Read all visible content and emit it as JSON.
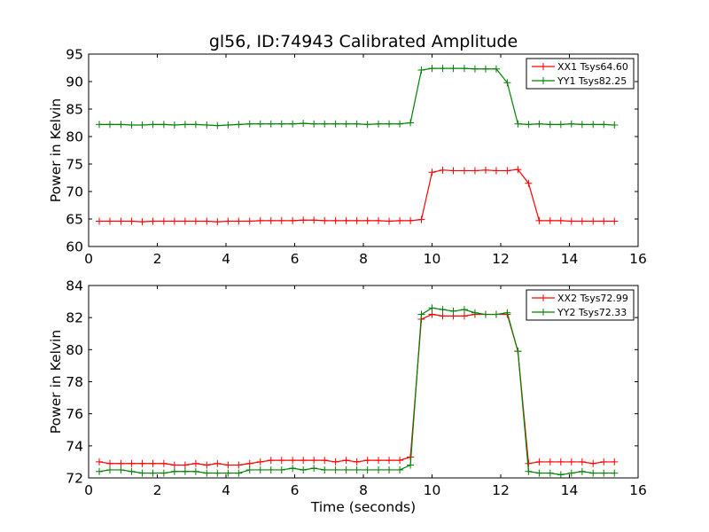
{
  "figure": {
    "title": "gl56, ID:74943 Calibrated Amplitude"
  },
  "chart_data": [
    {
      "type": "line",
      "title": "gl56, ID:74943 Calibrated Amplitude",
      "xlabel": "",
      "ylabel": "Power in Kelvin",
      "xlim": [
        0,
        16
      ],
      "ylim": [
        60,
        95
      ],
      "xticks": [
        0,
        2,
        4,
        6,
        8,
        10,
        12,
        14,
        16
      ],
      "yticks": [
        60,
        65,
        70,
        75,
        80,
        85,
        90,
        95
      ],
      "legend_position": "top-right",
      "grid": false,
      "x": [
        0.31,
        0.62,
        0.94,
        1.25,
        1.56,
        1.87,
        2.19,
        2.5,
        2.81,
        3.12,
        3.44,
        3.75,
        4.06,
        4.37,
        4.69,
        5.0,
        5.31,
        5.62,
        5.94,
        6.25,
        6.56,
        6.87,
        7.19,
        7.5,
        7.81,
        8.12,
        8.44,
        8.75,
        9.06,
        9.37,
        9.69,
        10.0,
        10.31,
        10.62,
        10.94,
        11.25,
        11.56,
        11.87,
        12.19,
        12.5,
        12.81,
        13.12,
        13.44,
        13.75,
        14.06,
        14.37,
        14.69,
        15.0,
        15.31
      ],
      "series": [
        {
          "name": "XX1 Tsys64.60",
          "color": "#ff0000",
          "values": [
            64.6,
            64.6,
            64.6,
            64.6,
            64.5,
            64.6,
            64.6,
            64.6,
            64.6,
            64.6,
            64.6,
            64.5,
            64.6,
            64.6,
            64.6,
            64.7,
            64.7,
            64.7,
            64.7,
            64.8,
            64.8,
            64.7,
            64.7,
            64.7,
            64.7,
            64.7,
            64.7,
            64.6,
            64.7,
            64.7,
            64.9,
            73.5,
            73.9,
            73.8,
            73.8,
            73.8,
            73.9,
            73.8,
            73.8,
            74.0,
            71.5,
            64.7,
            64.7,
            64.7,
            64.6,
            64.6,
            64.6,
            64.6,
            64.6
          ]
        },
        {
          "name": "YY1 Tsys82.25",
          "color": "#008000",
          "values": [
            82.2,
            82.2,
            82.2,
            82.1,
            82.1,
            82.2,
            82.2,
            82.1,
            82.2,
            82.2,
            82.1,
            82.0,
            82.1,
            82.2,
            82.3,
            82.3,
            82.3,
            82.3,
            82.3,
            82.4,
            82.3,
            82.3,
            82.3,
            82.3,
            82.3,
            82.2,
            82.3,
            82.3,
            82.3,
            82.5,
            92.1,
            92.4,
            92.4,
            92.4,
            92.4,
            92.3,
            92.3,
            92.3,
            89.8,
            82.3,
            82.2,
            82.3,
            82.2,
            82.2,
            82.3,
            82.2,
            82.2,
            82.2,
            82.1
          ]
        }
      ]
    },
    {
      "type": "line",
      "title": "",
      "xlabel": "Time (seconds)",
      "ylabel": "Power in Kelvin",
      "xlim": [
        0,
        16
      ],
      "ylim": [
        72,
        84
      ],
      "xticks": [
        0,
        2,
        4,
        6,
        8,
        10,
        12,
        14,
        16
      ],
      "yticks": [
        72,
        74,
        76,
        78,
        80,
        82,
        84
      ],
      "legend_position": "top-right",
      "grid": false,
      "x": [
        0.31,
        0.62,
        0.94,
        1.25,
        1.56,
        1.87,
        2.19,
        2.5,
        2.81,
        3.12,
        3.44,
        3.75,
        4.06,
        4.37,
        4.69,
        5.0,
        5.31,
        5.62,
        5.94,
        6.25,
        6.56,
        6.87,
        7.19,
        7.5,
        7.81,
        8.12,
        8.44,
        8.75,
        9.06,
        9.37,
        9.69,
        10.0,
        10.31,
        10.62,
        10.94,
        11.25,
        11.56,
        11.87,
        12.19,
        12.5,
        12.81,
        13.12,
        13.44,
        13.75,
        14.06,
        14.37,
        14.69,
        15.0,
        15.31
      ],
      "series": [
        {
          "name": "XX2 Tsys72.99",
          "color": "#ff0000",
          "values": [
            73.0,
            72.9,
            72.9,
            72.9,
            72.9,
            72.9,
            72.9,
            72.8,
            72.8,
            72.9,
            72.8,
            72.9,
            72.8,
            72.8,
            72.9,
            73.0,
            73.1,
            73.1,
            73.1,
            73.1,
            73.1,
            73.1,
            73.0,
            73.1,
            73.0,
            73.1,
            73.1,
            73.1,
            73.1,
            73.3,
            81.9,
            82.2,
            82.1,
            82.1,
            82.1,
            82.2,
            82.2,
            82.2,
            82.2,
            79.9,
            72.9,
            73.0,
            73.0,
            73.0,
            73.0,
            73.0,
            72.9,
            73.0,
            73.0
          ]
        },
        {
          "name": "YY2 Tsys72.33",
          "color": "#008000",
          "values": [
            72.4,
            72.5,
            72.5,
            72.4,
            72.3,
            72.3,
            72.3,
            72.4,
            72.4,
            72.4,
            72.3,
            72.3,
            72.3,
            72.3,
            72.5,
            72.5,
            72.5,
            72.5,
            72.6,
            72.5,
            72.6,
            72.5,
            72.5,
            72.5,
            72.5,
            72.5,
            72.5,
            72.5,
            72.5,
            72.8,
            82.2,
            82.6,
            82.5,
            82.4,
            82.5,
            82.3,
            82.2,
            82.2,
            82.3,
            79.9,
            72.4,
            72.3,
            72.3,
            72.2,
            72.3,
            72.4,
            72.3,
            72.3,
            72.3
          ]
        }
      ]
    }
  ]
}
